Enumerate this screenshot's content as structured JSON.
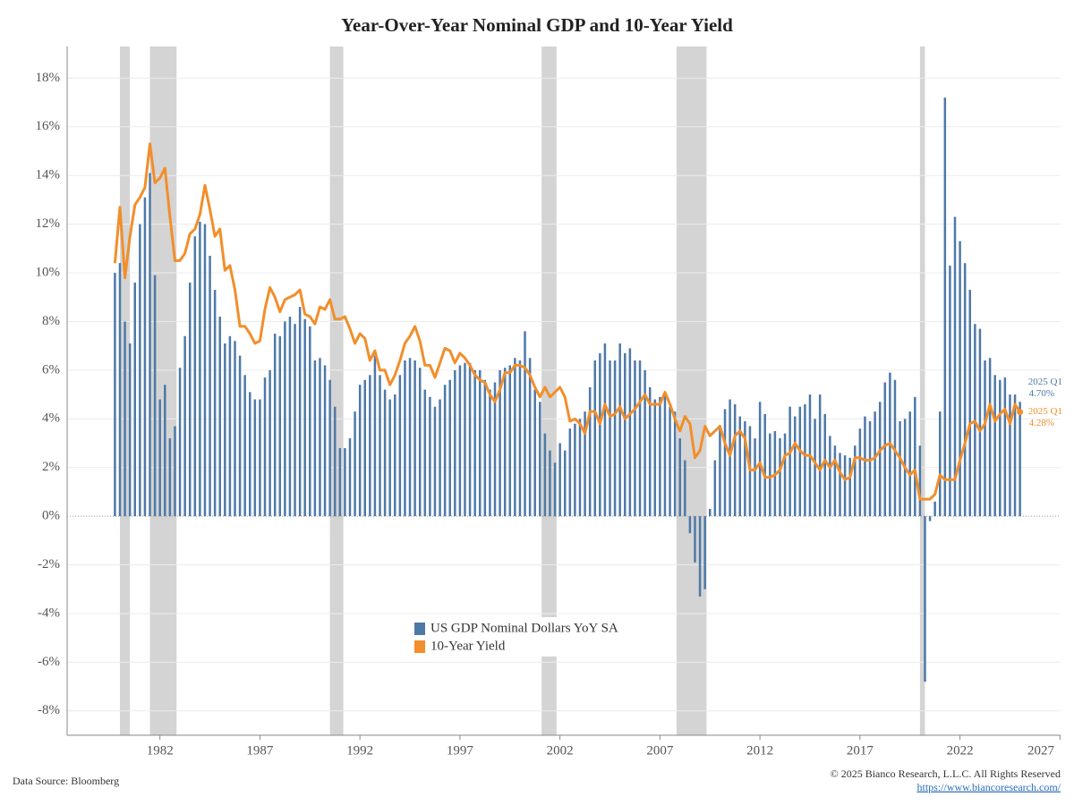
{
  "chart_data": {
    "type": "bar_line",
    "title": "Year-Over-Year Nominal GDP and 10-Year Yield",
    "source": "Data Source: Bloomberg",
    "copyright": "© 2025 Bianco Research, L.L.C. All Rights Reserved",
    "url": "https://www.biancoresearch.com/",
    "xlim": [
      1977.36,
      2027.03
    ],
    "xticks": [
      1982,
      1987,
      1992,
      1997,
      2002,
      2007,
      2012,
      2017,
      2022,
      2027
    ],
    "ylim": [
      -9,
      19.3
    ],
    "yticks": [
      {
        "value": -8,
        "label": "-8%"
      },
      {
        "value": -6,
        "label": "-6%"
      },
      {
        "value": -4,
        "label": "-4%"
      },
      {
        "value": -2,
        "label": "-2%"
      },
      {
        "value": 0,
        "label": "0%"
      },
      {
        "value": 2,
        "label": "2%"
      },
      {
        "value": 4,
        "label": "4%"
      },
      {
        "value": 6,
        "label": "6%"
      },
      {
        "value": 8,
        "label": "8%"
      },
      {
        "value": 10,
        "label": "10%"
      },
      {
        "value": 12,
        "label": "12%"
      },
      {
        "value": 14,
        "label": "14%"
      },
      {
        "value": 16,
        "label": "16%"
      },
      {
        "value": 18,
        "label": "18%"
      }
    ],
    "grid": true,
    "shaded_periods": [
      [
        1980.0,
        1980.5
      ],
      [
        1981.5,
        1982.83
      ],
      [
        1990.5,
        1991.17
      ],
      [
        2001.08,
        2001.83
      ],
      [
        2007.83,
        2009.33
      ],
      [
        2020.0,
        2020.25
      ]
    ],
    "shade_color": "#d4d4d4",
    "x": [
      1979.75,
      1980,
      1980.25,
      1980.5,
      1980.75,
      1981,
      1981.25,
      1981.5,
      1981.75,
      1982,
      1982.25,
      1982.5,
      1982.75,
      1983,
      1983.25,
      1983.5,
      1983.75,
      1984,
      1984.25,
      1984.5,
      1984.75,
      1985,
      1985.25,
      1985.5,
      1985.75,
      1986,
      1986.25,
      1986.5,
      1986.75,
      1987,
      1987.25,
      1987.5,
      1987.75,
      1988,
      1988.25,
      1988.5,
      1988.75,
      1989,
      1989.25,
      1989.5,
      1989.75,
      1990,
      1990.25,
      1990.5,
      1990.75,
      1991,
      1991.25,
      1991.5,
      1991.75,
      1992,
      1992.25,
      1992.5,
      1992.75,
      1993,
      1993.25,
      1993.5,
      1993.75,
      1994,
      1994.25,
      1994.5,
      1994.75,
      1995,
      1995.25,
      1995.5,
      1995.75,
      1996,
      1996.25,
      1996.5,
      1996.75,
      1997,
      1997.25,
      1997.5,
      1997.75,
      1998,
      1998.25,
      1998.5,
      1998.75,
      1999,
      1999.25,
      1999.5,
      1999.75,
      2000,
      2000.25,
      2000.5,
      2000.75,
      2001,
      2001.25,
      2001.5,
      2001.75,
      2002,
      2002.25,
      2002.5,
      2002.75,
      2003,
      2003.25,
      2003.5,
      2003.75,
      2004,
      2004.25,
      2004.5,
      2004.75,
      2005,
      2005.25,
      2005.5,
      2005.75,
      2006,
      2006.25,
      2006.5,
      2006.75,
      2007,
      2007.25,
      2007.5,
      2007.75,
      2008,
      2008.25,
      2008.5,
      2008.75,
      2009,
      2009.25,
      2009.5,
      2009.75,
      2010,
      2010.25,
      2010.5,
      2010.75,
      2011,
      2011.25,
      2011.5,
      2011.75,
      2012,
      2012.25,
      2012.5,
      2012.75,
      2013,
      2013.25,
      2013.5,
      2013.75,
      2014,
      2014.25,
      2014.5,
      2014.75,
      2015,
      2015.25,
      2015.5,
      2015.75,
      2016,
      2016.25,
      2016.5,
      2016.75,
      2017,
      2017.25,
      2017.5,
      2017.75,
      2018,
      2018.25,
      2018.5,
      2018.75,
      2019,
      2019.25,
      2019.5,
      2019.75,
      2020,
      2020.25,
      2020.5,
      2020.75,
      2021,
      2021.25,
      2021.5,
      2021.75,
      2022,
      2022.25,
      2022.5,
      2022.75,
      2023,
      2023.25,
      2023.5,
      2023.75,
      2024,
      2024.25,
      2024.5,
      2024.75,
      2025
    ],
    "series": [
      {
        "name": "US GDP Nominal Dollars YoY SA",
        "type": "bar",
        "color": "#4e79a7",
        "end_label": "2025 Q1",
        "end_value_label": "4.70%",
        "values": [
          10.0,
          10.4,
          8.0,
          7.1,
          9.6,
          12.0,
          13.1,
          14.1,
          9.9,
          4.8,
          5.4,
          3.2,
          3.7,
          6.1,
          7.4,
          9.6,
          11.5,
          12.1,
          12.0,
          10.7,
          9.3,
          8.2,
          7.1,
          7.4,
          7.2,
          6.6,
          5.8,
          5.1,
          4.8,
          4.8,
          5.7,
          6.0,
          7.5,
          7.4,
          8.0,
          8.2,
          7.9,
          8.6,
          8.1,
          7.8,
          6.4,
          6.5,
          6.2,
          5.6,
          4.5,
          2.8,
          2.8,
          3.2,
          4.3,
          5.4,
          5.6,
          5.8,
          6.6,
          5.8,
          5.2,
          4.8,
          5.0,
          5.8,
          6.4,
          6.5,
          6.4,
          6.1,
          5.2,
          4.9,
          4.5,
          4.8,
          5.4,
          5.6,
          6.0,
          6.2,
          6.3,
          6.3,
          6.0,
          6.0,
          5.6,
          5.2,
          5.5,
          6.0,
          6.1,
          6.2,
          6.5,
          6.4,
          7.6,
          6.5,
          5.2,
          4.7,
          3.4,
          2.7,
          2.2,
          3.0,
          2.7,
          3.6,
          3.8,
          4.0,
          4.3,
          5.3,
          6.4,
          6.7,
          7.1,
          6.4,
          6.4,
          7.1,
          6.7,
          6.9,
          6.4,
          6.4,
          6.0,
          5.3,
          4.8,
          4.9,
          5.0,
          4.5,
          4.3,
          3.2,
          2.3,
          -0.7,
          -1.9,
          -3.3,
          -3.0,
          0.3,
          2.3,
          3.7,
          4.4,
          4.8,
          4.6,
          4.1,
          3.9,
          3.7,
          3.2,
          4.7,
          4.2,
          3.4,
          3.5,
          3.2,
          3.4,
          4.5,
          4.1,
          4.5,
          4.6,
          5.0,
          4.0,
          5.0,
          4.2,
          3.3,
          2.9,
          2.6,
          2.5,
          2.4,
          2.9,
          3.6,
          4.1,
          3.9,
          4.3,
          4.7,
          5.5,
          5.9,
          5.6,
          3.9,
          4.0,
          4.3,
          4.9,
          2.9,
          -6.8,
          -0.2,
          0.6,
          4.3,
          17.2,
          10.3,
          12.3,
          11.3,
          10.4,
          9.3,
          7.9,
          7.7,
          6.4,
          6.5,
          5.8,
          5.6,
          5.7,
          5.0,
          5.0,
          4.7
        ]
      },
      {
        "name": "10-Year Yield",
        "type": "line",
        "color": "#f28e2b",
        "end_label": "2025 Q1",
        "end_value_label": "4.28%",
        "values": [
          10.4,
          12.7,
          9.8,
          11.5,
          12.8,
          13.1,
          13.5,
          15.3,
          13.7,
          13.9,
          14.3,
          12.3,
          10.5,
          10.5,
          10.8,
          11.6,
          11.8,
          12.4,
          13.6,
          12.6,
          11.5,
          11.8,
          10.1,
          10.3,
          9.3,
          7.8,
          7.8,
          7.5,
          7.1,
          7.2,
          8.5,
          9.4,
          9.0,
          8.4,
          8.9,
          9.0,
          9.1,
          9.3,
          8.3,
          8.2,
          7.9,
          8.6,
          8.5,
          8.9,
          8.1,
          8.1,
          8.2,
          7.7,
          7.1,
          7.5,
          7.3,
          6.4,
          6.8,
          6.0,
          6.0,
          5.4,
          5.8,
          6.4,
          7.1,
          7.4,
          7.8,
          7.2,
          6.2,
          6.2,
          5.7,
          6.3,
          6.9,
          6.8,
          6.3,
          6.7,
          6.5,
          6.2,
          5.8,
          5.6,
          5.5,
          5.0,
          4.7,
          5.2,
          5.9,
          5.9,
          6.2,
          6.2,
          6.1,
          5.8,
          5.3,
          4.9,
          5.3,
          4.9,
          5.1,
          5.3,
          4.9,
          3.9,
          4.0,
          3.8,
          3.4,
          4.3,
          4.3,
          3.8,
          4.6,
          4.1,
          4.2,
          4.5,
          4.0,
          4.2,
          4.4,
          4.7,
          5.0,
          4.6,
          4.6,
          4.6,
          5.1,
          4.6,
          4.0,
          3.5,
          4.1,
          3.8,
          2.4,
          2.7,
          3.7,
          3.3,
          3.5,
          3.7,
          3.0,
          2.5,
          3.3,
          3.5,
          3.2,
          1.9,
          1.9,
          2.2,
          1.6,
          1.6,
          1.7,
          1.9,
          2.5,
          2.6,
          3.0,
          2.7,
          2.5,
          2.5,
          2.2,
          1.9,
          2.3,
          2.0,
          2.3,
          1.8,
          1.5,
          1.6,
          2.4,
          2.4,
          2.3,
          2.3,
          2.4,
          2.7,
          2.9,
          3.0,
          2.7,
          2.4,
          2.0,
          1.7,
          1.9,
          0.7,
          0.7,
          0.7,
          0.9,
          1.7,
          1.5,
          1.5,
          1.5,
          2.3,
          3.0,
          3.8,
          3.9,
          3.5,
          3.8,
          4.6,
          3.9,
          4.2,
          4.4,
          3.8,
          4.6,
          4.28
        ]
      }
    ]
  }
}
